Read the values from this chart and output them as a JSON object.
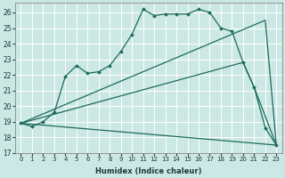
{
  "xlabel": "Humidex (Indice chaleur)",
  "bg_color": "#cce8e4",
  "grid_color": "#ffffff",
  "line_color": "#1a6b5a",
  "xlim": [
    -0.5,
    23.5
  ],
  "ylim": [
    17,
    26.6
  ],
  "yticks": [
    17,
    18,
    19,
    20,
    21,
    22,
    23,
    24,
    25,
    26
  ],
  "xticks": [
    0,
    1,
    2,
    3,
    4,
    5,
    6,
    7,
    8,
    9,
    10,
    11,
    12,
    13,
    14,
    15,
    16,
    17,
    18,
    19,
    20,
    21,
    22,
    23
  ],
  "series": [
    {
      "x": [
        0,
        1,
        2,
        3,
        4,
        5,
        6,
        7,
        8,
        9,
        10,
        11,
        12,
        13,
        14,
        15,
        16,
        17,
        18,
        19,
        20,
        21,
        22,
        23
      ],
      "y": [
        18.9,
        18.7,
        19.0,
        19.6,
        21.9,
        22.6,
        22.1,
        22.2,
        22.6,
        23.5,
        24.6,
        26.2,
        25.8,
        25.9,
        25.9,
        25.9,
        26.2,
        26.0,
        25.0,
        24.8,
        22.8,
        21.2,
        18.6,
        17.5
      ],
      "marker": true
    },
    {
      "x": [
        0,
        22,
        23
      ],
      "y": [
        18.9,
        25.5,
        17.5
      ],
      "marker": false
    },
    {
      "x": [
        0,
        20,
        21,
        23
      ],
      "y": [
        18.9,
        22.8,
        21.2,
        17.5
      ],
      "marker": false
    },
    {
      "x": [
        0,
        23
      ],
      "y": [
        18.9,
        17.5
      ],
      "marker": false
    }
  ]
}
